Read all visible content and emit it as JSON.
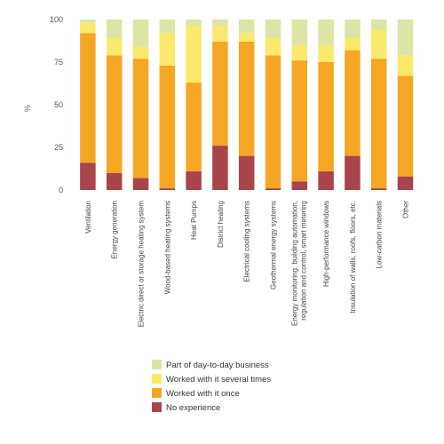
{
  "chart_data": {
    "type": "bar",
    "stacked": true,
    "ylabel": "%",
    "ylim": [
      0,
      100
    ],
    "yticks": [
      "0",
      "25",
      "50",
      "75",
      "100"
    ],
    "grid": false,
    "legend_position": "bottom",
    "categories": [
      "Ventilation",
      "Energy generation",
      "Electric direct or storage heating system",
      "Wood-based heating systems",
      "Heat Pumps",
      "District heating",
      "Electrical cooling systems",
      "Geothermal energy systems",
      "Energy monitoring, building automation, regulation and control, smart metering",
      "High-performance windows",
      "Insulation of walls, roofs, floors, etc.",
      "Low-carbon materials",
      "Other"
    ],
    "series": [
      {
        "name": "No experience",
        "color": "#a8444a",
        "values": [
          16,
          10,
          7,
          1,
          11,
          26,
          20,
          1,
          5,
          11,
          20,
          1,
          8
        ]
      },
      {
        "name": "Worked with it once",
        "color": "#f5a623",
        "values": [
          76,
          69,
          70,
          72,
          52,
          61,
          67,
          78,
          71,
          64,
          62,
          76,
          59
        ]
      },
      {
        "name": "Worked with it several times",
        "color": "#fae96a",
        "values": [
          6,
          10,
          7,
          19,
          33,
          9,
          5,
          10,
          9,
          10,
          7,
          17,
          12
        ]
      },
      {
        "name": "Part of day-to-day business",
        "color": "#dde5a6",
        "values": [
          2,
          11,
          16,
          8,
          4,
          4,
          8,
          11,
          15,
          15,
          11,
          6,
          21
        ]
      }
    ]
  }
}
